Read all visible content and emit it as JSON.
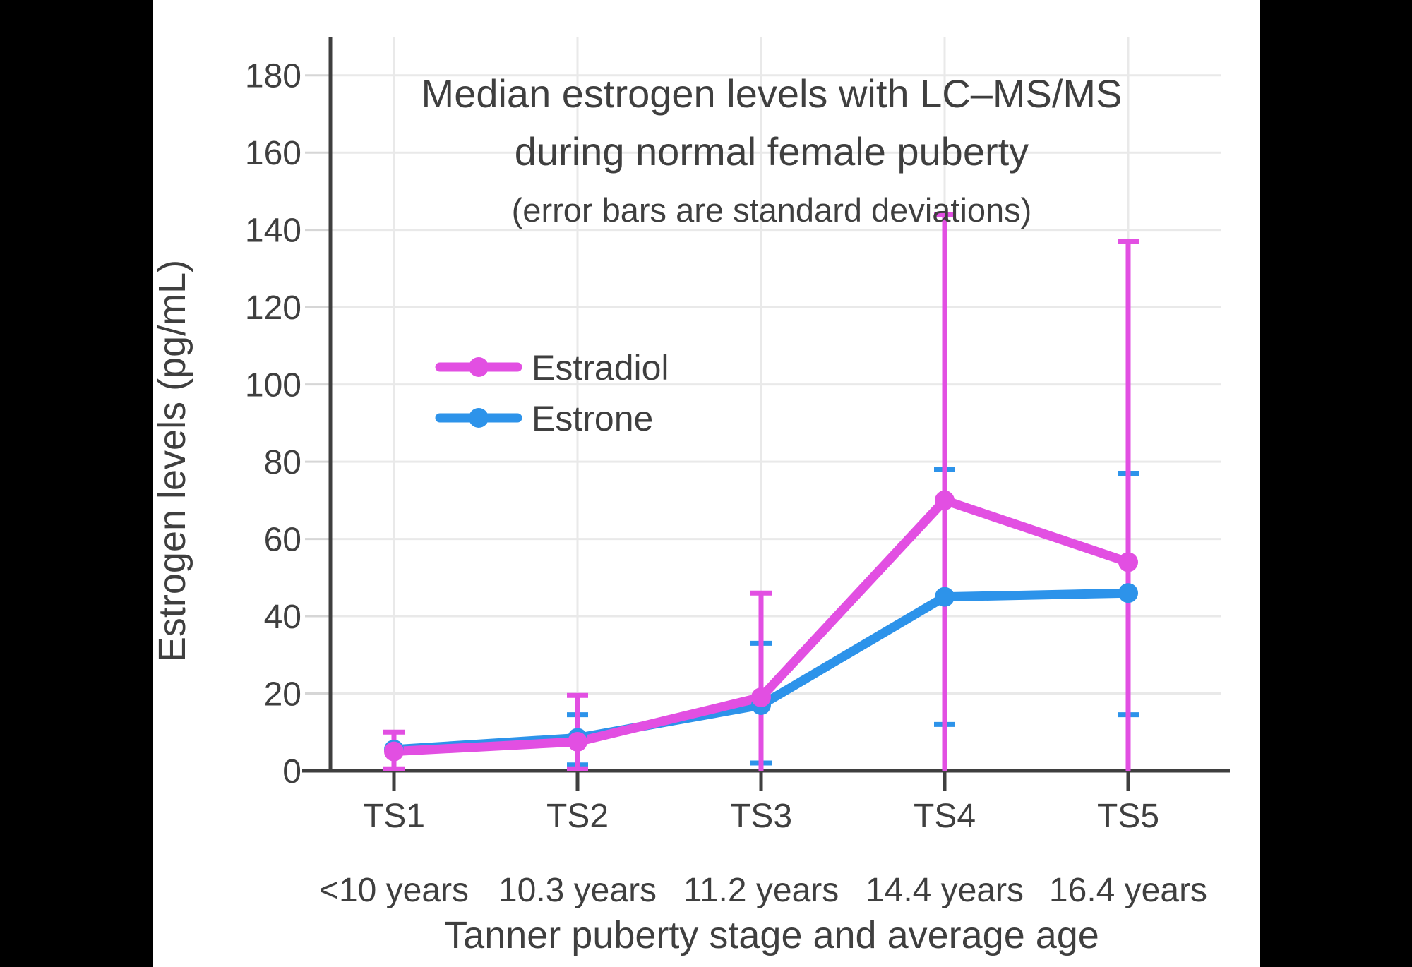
{
  "colors": {
    "page_background": "#ffffff",
    "side_bars": "#000000",
    "ink": "#3F3F3F",
    "grid": "#E9E9E9",
    "y_tick_mark": "#D6D6D6",
    "estradiol": "#E24FE2",
    "estrone": "#2D93EA"
  },
  "chart_data": {
    "type": "line",
    "title_line1": "Median estrogen levels with LC–MS/MS",
    "title_line2": "during normal female puberty",
    "subtitle": "(error bars are standard deviations)",
    "xlabel": "Tanner puberty stage and average age",
    "ylabel": "Estrogen levels (pg/mL)",
    "grid": true,
    "legend_position": "inside-upper-left",
    "ylim": [
      0,
      190
    ],
    "y_ticks": [
      0,
      20,
      40,
      60,
      80,
      100,
      120,
      140,
      160,
      180
    ],
    "x_categories": [
      {
        "stage": "TS1",
        "age": "<10 years"
      },
      {
        "stage": "TS2",
        "age": "10.3 years"
      },
      {
        "stage": "TS3",
        "age": "11.2 years"
      },
      {
        "stage": "TS4",
        "age": "14.4 years"
      },
      {
        "stage": "TS5",
        "age": "16.4 years"
      }
    ],
    "series": [
      {
        "name": "Estrone",
        "color": "#2D93EA",
        "values": [
          5.5,
          8.5,
          17,
          45,
          46
        ],
        "err_high": [
          null,
          14.5,
          33,
          78,
          77
        ],
        "err_low": [
          null,
          1.5,
          2,
          12,
          14.5
        ]
      },
      {
        "name": "Estradiol",
        "color": "#E24FE2",
        "values": [
          5,
          7.5,
          19,
          70,
          54
        ],
        "err_high": [
          10,
          19.5,
          46,
          144,
          137
        ],
        "err_low": [
          0.5,
          0.5,
          null,
          null,
          null
        ]
      }
    ],
    "legend_order": [
      "Estradiol",
      "Estrone"
    ]
  }
}
